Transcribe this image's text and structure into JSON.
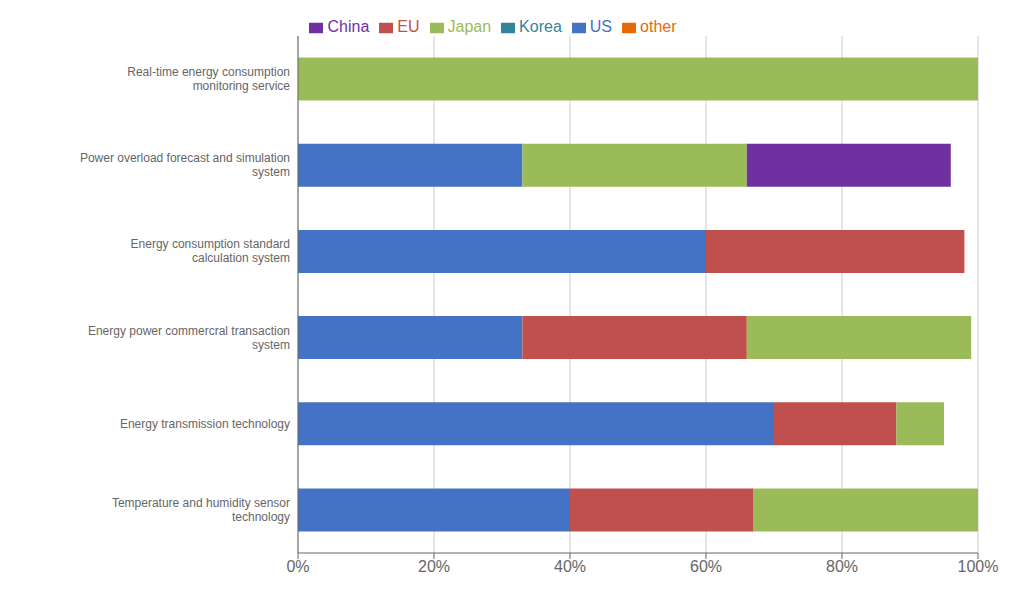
{
  "chart_data": {
    "type": "bar",
    "orientation": "horizontal",
    "stacked": true,
    "categories": [
      "Real-time energy consumption\nmonitoring service",
      "Power overload forecast and simulation\nsystem",
      "Energy consumption standard\ncalculation system",
      "Energy power commercral transaction\nsystem",
      "Energy transmission technology",
      "Temperature and humidity sensor\ntechnology"
    ],
    "series": [
      {
        "name": "US",
        "color": "#4472C4",
        "values": [
          0,
          33,
          60,
          33,
          70,
          40
        ]
      },
      {
        "name": "EU",
        "color": "#C0504D",
        "values": [
          0,
          0,
          38,
          33,
          18,
          27
        ]
      },
      {
        "name": "Japan",
        "color": "#9BBB59",
        "values": [
          100,
          33,
          0,
          33,
          7,
          33
        ]
      },
      {
        "name": "China",
        "color": "#7030A0",
        "values": [
          0,
          30,
          0,
          0,
          0,
          0
        ]
      },
      {
        "name": "Korea",
        "color": "#31849B",
        "values": [
          0,
          0,
          0,
          0,
          0,
          0
        ]
      },
      {
        "name": "other",
        "color": "#E36C09",
        "values": [
          0,
          0,
          0,
          0,
          0,
          0
        ]
      }
    ],
    "xlim": [
      0,
      100
    ],
    "xticks": [
      {
        "value": 0,
        "label": "0%"
      },
      {
        "value": 20,
        "label": "20%"
      },
      {
        "value": 40,
        "label": "40%"
      },
      {
        "value": 60,
        "label": "60%"
      },
      {
        "value": 80,
        "label": "80%"
      },
      {
        "value": 100,
        "label": "100%"
      }
    ],
    "grid": true,
    "legend": "top"
  }
}
